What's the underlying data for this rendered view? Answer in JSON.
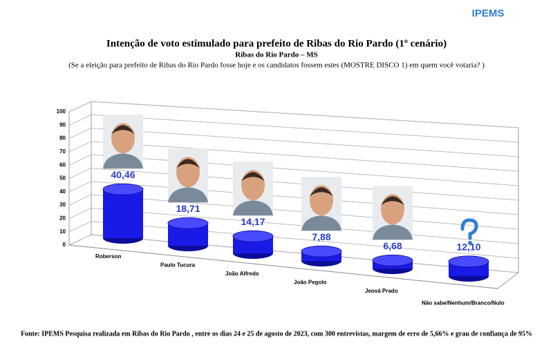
{
  "chart_data": {
    "type": "cylinder-bar",
    "logo": "IPEMS",
    "title": "Intenção de voto estimulado para prefeito de Ribas do Rio Pardo   (1º cenário)",
    "subtitle": "Ribas do Rio Pardo  – MS",
    "question": "(Se a eleição para prefeito de Ribas do Rio Pardo  fosse hoje e os candidatos fossem estes (MOSTRE DISCO 1) em quem você votaria? )",
    "categories": [
      "Roberson",
      "Paulo Tucura",
      "João Alfredo",
      "João Pegolo",
      "Jeová Prado",
      "Não sabe/Nenhum/Branco/Nulo"
    ],
    "values": [
      40.46,
      18.71,
      14.17,
      7.88,
      6.68,
      12.1
    ],
    "value_labels": [
      "40,46",
      "18,71",
      "14,17",
      "7,88",
      "6,68",
      "12,10"
    ],
    "color": "#1a1ae6",
    "label_color": "#2a3fc8",
    "ylim": [
      0,
      100
    ],
    "yticks": [
      0,
      10,
      20,
      30,
      40,
      50,
      60,
      70,
      80,
      90,
      100
    ],
    "grid": true,
    "source": "Fonte: IPEMS    Pesquisa realizada em Ribas do Rio Pardo , entre os dias 24 e 25 de agosto de 2023, com 300 entrevistas, margem de erro de 5,66% e grau de confiança de 95%"
  }
}
